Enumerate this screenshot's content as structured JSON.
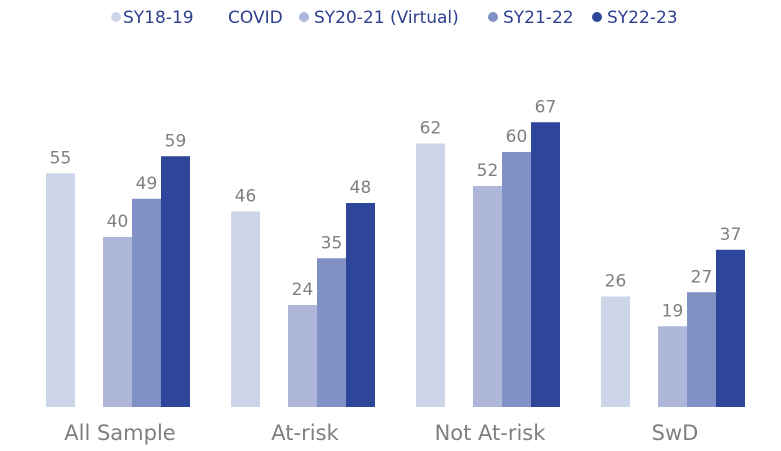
{
  "chart_data": {
    "type": "bar",
    "title": "",
    "xlabel": "",
    "ylabel": "",
    "categories": [
      "All Sample",
      "At-risk",
      "Not At-risk",
      "SwD"
    ],
    "series": [
      {
        "name": "SY18-19",
        "color": "#CDD5E8",
        "values": [
          55,
          46,
          62,
          26
        ]
      },
      {
        "name": "COVID",
        "color": null,
        "values": [
          null,
          null,
          null,
          null
        ]
      },
      {
        "name": "SY20-21 (Virtual)",
        "color": "#AEB6DA",
        "values": [
          40,
          24,
          52,
          19
        ]
      },
      {
        "name": "SY21-22",
        "color": "#8191C5",
        "values": [
          49,
          35,
          60,
          27
        ]
      },
      {
        "name": "SY22-23",
        "color": "#2D4699",
        "values": [
          59,
          48,
          67,
          37
        ]
      }
    ],
    "ylim": [
      0,
      67
    ],
    "grid": false,
    "legend_position": "top"
  }
}
